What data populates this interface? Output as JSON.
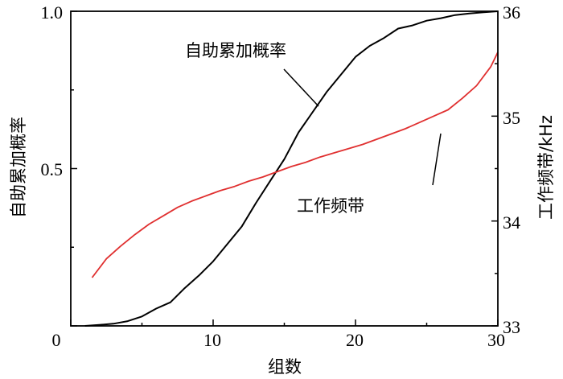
{
  "chart_data": {
    "type": "line",
    "xlabel": "组数",
    "ylabel_left": "自助累加概率",
    "ylabel_right": "工作频带/kHz",
    "xlim": [
      0,
      30
    ],
    "ylim_left": [
      0,
      1.0
    ],
    "ylim_right": [
      33,
      36
    ],
    "xticks": [
      "0",
      "10",
      "20",
      "30"
    ],
    "yticks_left": [
      "0.5",
      "1.0"
    ],
    "yticks_right": [
      "33",
      "34",
      "35",
      "36"
    ],
    "grid": false,
    "series": [
      {
        "name": "自助累加概率",
        "axis": "left",
        "color": "#000000",
        "x": [
          1,
          2,
          3,
          4,
          5,
          6,
          7,
          8,
          9,
          10,
          11,
          12,
          13,
          14,
          15,
          16,
          17,
          18,
          19,
          20,
          21,
          22,
          23,
          24,
          25,
          26,
          27,
          28,
          29,
          30
        ],
        "y": [
          0.0,
          0.003,
          0.007,
          0.015,
          0.03,
          0.055,
          0.075,
          0.12,
          0.16,
          0.205,
          0.26,
          0.315,
          0.39,
          0.46,
          0.53,
          0.615,
          0.68,
          0.745,
          0.8,
          0.855,
          0.89,
          0.915,
          0.945,
          0.955,
          0.97,
          0.978,
          0.988,
          0.993,
          0.997,
          1.0
        ]
      },
      {
        "name": "工作频带",
        "axis": "right",
        "color": "#e03030",
        "x": [
          1.5,
          2.5,
          3.5,
          4.5,
          5.5,
          6.5,
          7.5,
          8.5,
          9.5,
          10.5,
          11.5,
          12.5,
          13.5,
          14.5,
          15.5,
          16.5,
          17.5,
          18.5,
          19.5,
          20.5,
          21.5,
          22.5,
          23.5,
          24.5,
          25.5,
          26.5,
          27.5,
          28.5,
          29.5,
          30.0
        ],
        "y": [
          33.46,
          33.64,
          33.76,
          33.87,
          33.97,
          34.05,
          34.13,
          34.19,
          34.24,
          34.29,
          34.33,
          34.38,
          34.42,
          34.47,
          34.52,
          34.56,
          34.61,
          34.65,
          34.69,
          34.73,
          34.78,
          34.83,
          34.88,
          34.94,
          35.0,
          35.06,
          35.17,
          35.29,
          35.47,
          35.61
        ]
      }
    ],
    "annotations": [
      {
        "text": "自助累加概率",
        "series": "自助累加概率"
      },
      {
        "text": "工作频带",
        "series": "工作频带"
      }
    ]
  }
}
